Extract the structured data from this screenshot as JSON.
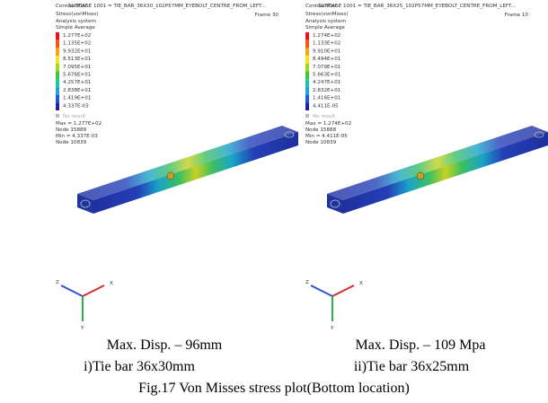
{
  "panels": [
    {
      "contour": "Contour Plot",
      "subcase": "SUBCASE 1001 = TIE_BAR_36X30_102P57MM_EYEBOLT_CENTRE_FROM_LEFT...",
      "frame": "Frame 30",
      "result": "Stress(vonMises)",
      "system": "Analysis system",
      "averaging": "Simple Average",
      "legend": [
        "1.277E+02",
        "1.135E+02",
        "9.932E+01",
        "8.513E+01",
        "7.095E+01",
        "5.676E+01",
        "4.257E+01",
        "2.838E+01",
        "1.419E+01",
        "4.337E-03"
      ],
      "no_result": "No result",
      "max": "Max = 1.277E+02",
      "max_node": "Node 15888",
      "min": "Min = 4.337E-03",
      "min_node": "Node 10839",
      "axes": [
        "Z",
        "X",
        "Y"
      ],
      "disp": "Max. Disp. – 96mm",
      "label": "i)Tie bar 36x30mm"
    },
    {
      "contour": "Contour Plot",
      "subcase": "SUBCASE 1001 = TIE_BAR_36X25_102P57MM_EYEBOLT_CENTRE_FROM_LEFT...",
      "frame": "Frame 10",
      "result": "Stress(vonMises)",
      "system": "Analysis system",
      "averaging": "Simple Average",
      "legend": [
        "1.274E+02",
        "1.133E+02",
        "9.910E+01",
        "8.494E+01",
        "7.079E+01",
        "5.663E+01",
        "4.247E+01",
        "2.832E+01",
        "1.416E+01",
        "4.411E-05"
      ],
      "no_result": "No result",
      "max": "Max = 1.274E+02",
      "max_node": "Node 15888",
      "min": "Min = 4.411E-05",
      "min_node": "Node 10839",
      "axes": [
        "Z",
        "X",
        "Y"
      ],
      "disp": "Max. Disp. – 109 Mpa",
      "label": "ii)Tie bar 36x25mm"
    }
  ],
  "caption": "Fig.17 Von Misses stress plot(Bottom location)"
}
